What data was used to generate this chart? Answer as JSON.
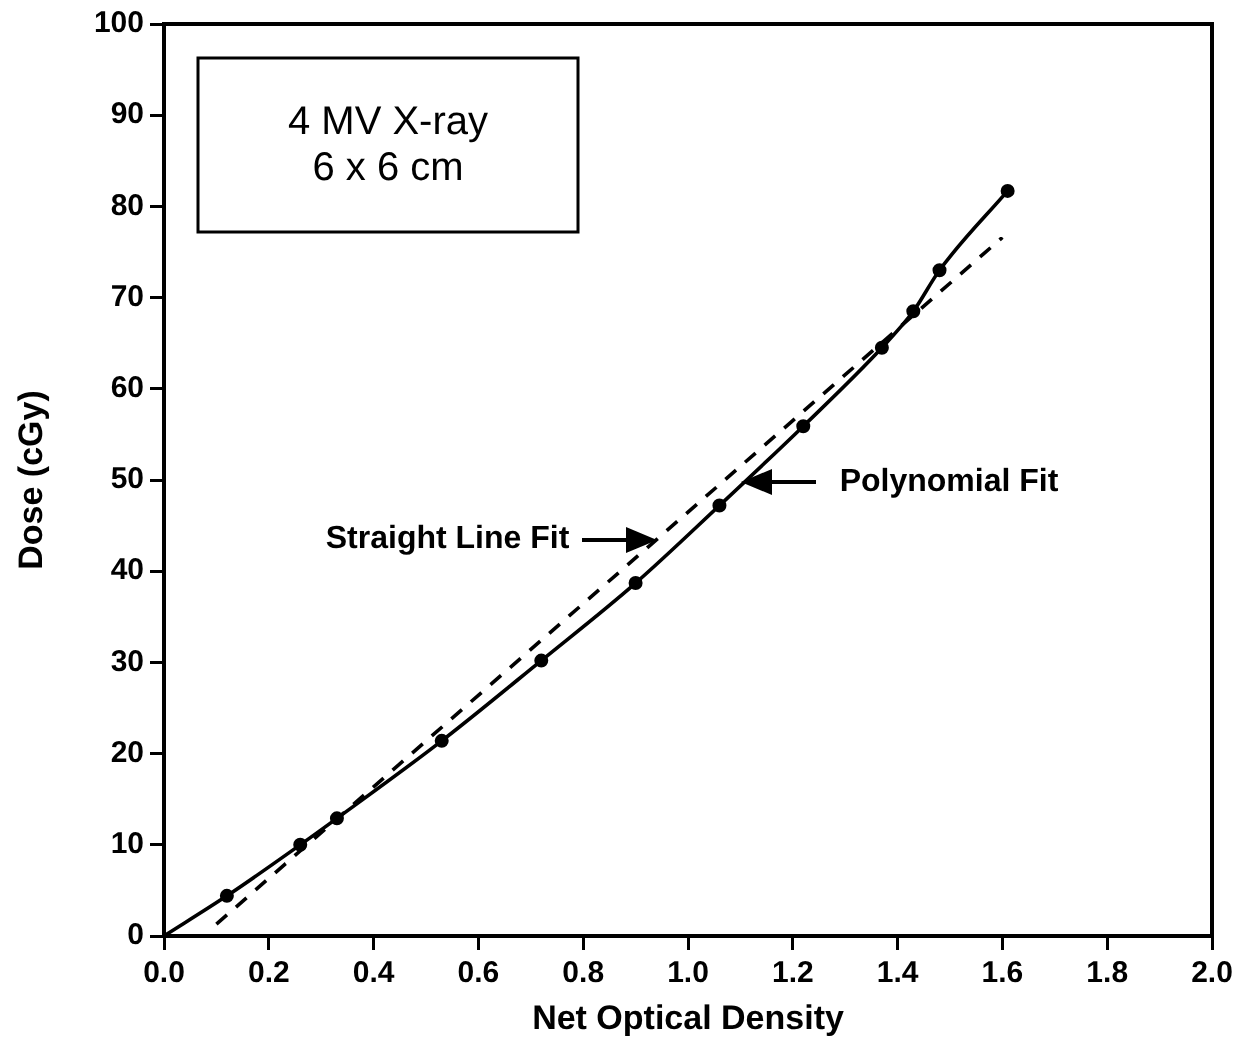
{
  "chart_data": {
    "type": "scatter",
    "title": "4 MV X-ray",
    "subtitle": "6 x 6 cm",
    "xlabel": "Net Optical Density",
    "ylabel": "Dose (cGy)",
    "xlim": [
      0,
      2
    ],
    "xticks": [
      {
        "value": 0,
        "label": "0.0"
      },
      {
        "value": 0.2,
        "label": "0.2"
      },
      {
        "value": 0.4,
        "label": "0.4"
      },
      {
        "value": 0.6,
        "label": "0.6"
      },
      {
        "value": 0.8,
        "label": "0.8"
      },
      {
        "value": 1,
        "label": "1.0"
      },
      {
        "value": 1.2,
        "label": "1.2"
      },
      {
        "value": 1.4,
        "label": "1.4"
      },
      {
        "value": 1.6,
        "label": "1.6"
      },
      {
        "value": 1.8,
        "label": "1.8"
      },
      {
        "value": 2,
        "label": "2.0"
      }
    ],
    "ylim": [
      0,
      100
    ],
    "yticks": [
      0,
      10,
      20,
      30,
      40,
      50,
      60,
      70,
      80,
      90,
      100
    ],
    "grid": false,
    "legend": false,
    "series": [
      {
        "color": "#000000",
        "marker": "circle",
        "x": [
          0.12,
          0.26,
          0.33,
          0.53,
          0.72,
          0.9,
          1.06,
          1.22,
          1.37,
          1.43,
          1.48,
          1.61
        ],
        "values": [
          4.4,
          10,
          12.9,
          21.4,
          30.2,
          38.7,
          47.2,
          55.9,
          64.5,
          68.5,
          73,
          81.7
        ]
      },
      {
        "type": "line",
        "color": "#000000",
        "marker": "none",
        "line_style": "solid",
        "x": [
          0,
          0.12,
          0.26,
          0.33,
          0.53,
          0.72,
          0.9,
          1.06,
          1.22,
          1.37,
          1.43,
          1.48,
          1.61
        ],
        "values": [
          0,
          4.4,
          10,
          12.9,
          21.4,
          30.2,
          38.7,
          47.2,
          55.9,
          64.5,
          68.5,
          73,
          81.7
        ]
      },
      {
        "type": "line",
        "color": "#000000",
        "marker": "none",
        "line_style": "dashed",
        "x": [
          0.1,
          1.6
        ],
        "values": [
          1.3,
          76.6
        ]
      }
    ],
    "annotations": [
      {
        "text": "Straight Line Fit",
        "x": 0.93,
        "y": 43.5
      },
      {
        "text": "Polynomial Fit",
        "x": 1.11,
        "y": 49.8
      }
    ]
  }
}
